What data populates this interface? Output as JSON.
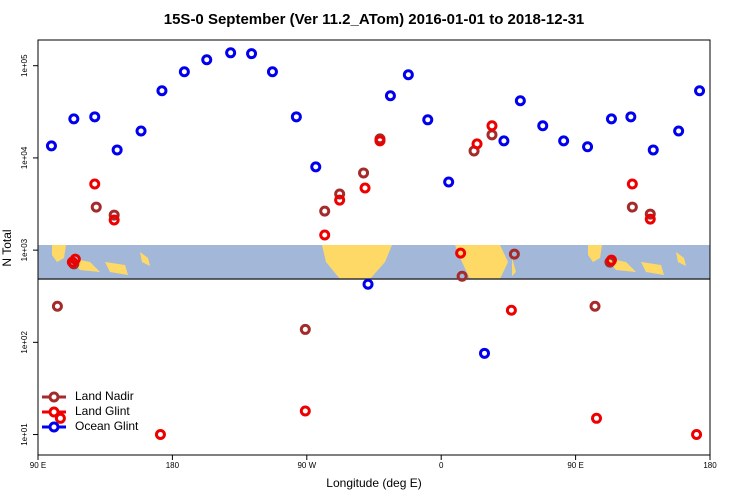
{
  "chart_data": {
    "type": "scatter",
    "title": "15S-0 September (Ver 11.2_ATom)   2016-01-01 to 2018-12-31",
    "x_label": "Longitude (deg E)",
    "y_label": "N Total",
    "xlim": [
      90,
      540
    ],
    "xticks": [
      {
        "value": 90,
        "label": "90 E"
      },
      {
        "value": 180,
        "label": "180"
      },
      {
        "value": 270,
        "label": "90 W"
      },
      {
        "value": 360,
        "label": "0"
      },
      {
        "value": 450,
        "label": "90 E"
      },
      {
        "value": 540,
        "label": "180"
      }
    ],
    "ylim": [
      6,
      190000
    ],
    "log_y": true,
    "yticks": [
      {
        "value": 10,
        "label": "1e+01"
      },
      {
        "value": 100,
        "label": "1e+02"
      },
      {
        "value": 1000,
        "label": "1e+03"
      },
      {
        "value": 10000,
        "label": "1e+04"
      },
      {
        "value": 100000,
        "label": "1e+05"
      }
    ],
    "legend": "lower left",
    "series": [
      {
        "name": "Land Nadir",
        "color": "#a52a2a",
        "x": [
          103,
          114,
          129,
          141,
          269,
          282,
          292,
          308,
          319,
          374,
          382,
          394,
          409,
          463,
          473,
          488,
          500
        ],
        "values": [
          246,
          710,
          2930,
          2400,
          138,
          2650,
          4060,
          6870,
          16100,
          521,
          11900,
          17800,
          905,
          246,
          741,
          2930,
          2460
        ]
      },
      {
        "name": "Land Glint",
        "color": "#ee0000",
        "x": [
          105,
          113,
          115,
          128,
          141,
          172,
          269,
          282,
          292,
          309,
          319,
          373,
          384,
          394,
          407,
          464,
          474,
          488,
          500,
          531
        ],
        "values": [
          15,
          741,
          798,
          5210,
          2120,
          10,
          18,
          1460,
          3490,
          4720,
          15300,
          927,
          14200,
          22300,
          223,
          15,
          778,
          5210,
          2170,
          10
        ]
      },
      {
        "name": "Ocean Glint",
        "color": "#0000ee",
        "x": [
          99,
          114,
          128,
          143,
          159,
          173,
          188,
          203,
          219,
          233,
          247,
          263,
          276,
          311,
          326,
          338,
          351,
          365,
          389,
          402,
          413,
          428,
          442,
          458,
          474,
          487,
          502,
          519,
          533
        ],
        "values": [
          13500,
          26500,
          27900,
          12200,
          19600,
          53500,
          86000,
          116000,
          138000,
          135000,
          86000,
          27900,
          8000,
          427,
          47200,
          79800,
          25900,
          5480,
          76,
          15300,
          41700,
          22300,
          15300,
          13200,
          26500,
          27900,
          12200,
          19600,
          53500
        ]
      }
    ]
  }
}
